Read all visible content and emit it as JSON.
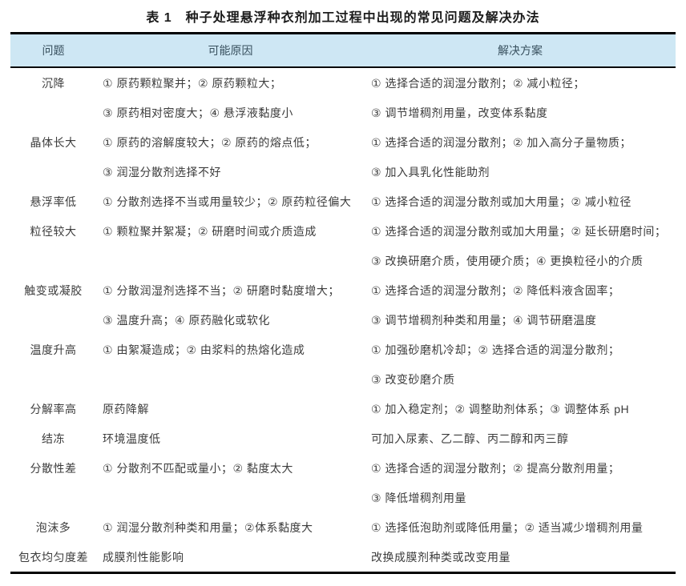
{
  "page": {
    "title": "表 1　种子处理悬浮种衣剂加工过程中出现的常见问题及解决办法"
  },
  "colors": {
    "header_bg": "#cee7f4",
    "rule": "#000000",
    "body_text": "#3c3c3c"
  },
  "table": {
    "header": {
      "problem": "问题",
      "cause": "可能原因",
      "solution": "解决方案"
    },
    "rows": [
      {
        "problem": "沉降",
        "causes": [
          "① 原药颗粒聚并；② 原药颗粒大；",
          "③ 原药相对密度大；④ 悬浮液黏度小"
        ],
        "solutions": [
          "① 选择合适的润湿分散剂；② 减小粒径；",
          "③ 调节增稠剂用量，改变体系黏度"
        ]
      },
      {
        "problem": "晶体长大",
        "causes": [
          "① 原药的溶解度较大；② 原药的熔点低；",
          "③ 润湿分散剂选择不好"
        ],
        "solutions": [
          "① 选择合适的润湿分散剂；② 加入高分子量物质；",
          "③ 加入具乳化性能助剂"
        ]
      },
      {
        "problem": "悬浮率低",
        "causes": [
          "① 分散剂选择不当或用量较少；② 原药粒径偏大"
        ],
        "solutions": [
          "① 选择合适的润湿分散剂或加大用量；② 减小粒径"
        ]
      },
      {
        "problem": "粒径较大",
        "causes": [
          "① 颗粒聚并絮凝；② 研磨时间或介质造成"
        ],
        "solutions": [
          "① 选择合适的润湿分散剂或加大用量；② 延长研磨时间；",
          "③ 改换研磨介质，使用硬介质；④ 更换粒径小的介质"
        ]
      },
      {
        "problem": "触变或凝胶",
        "causes": [
          "① 分散润湿剂选择不当；② 研磨时黏度增大；",
          "③ 温度升高；④ 原药融化或软化"
        ],
        "solutions": [
          "① 选择合适的润湿分散剂；② 降低料液含固率；",
          "③ 调节增稠剂种类和用量；④ 调节研磨温度"
        ]
      },
      {
        "problem": "温度升高",
        "causes": [
          "① 由絮凝造成；② 由浆料的热熔化造成"
        ],
        "solutions": [
          "① 加强砂磨机冷却；② 选择合适的润湿分散剂；",
          "③ 改变砂磨介质"
        ]
      },
      {
        "problem": "分解率高",
        "causes": [
          "原药降解"
        ],
        "solutions": [
          "① 加入稳定剂；② 调整助剂体系；③ 调整体系 pH"
        ]
      },
      {
        "problem": "结冻",
        "causes": [
          "环境温度低"
        ],
        "solutions": [
          "可加入尿素、乙二醇、丙二醇和丙三醇"
        ]
      },
      {
        "problem": "分散性差",
        "causes": [
          "① 分散剂不匹配或量小；② 黏度太大"
        ],
        "solutions": [
          "① 选择合适的润湿分散剂；② 提高分散剂用量；",
          "③ 降低增稠剂用量"
        ]
      },
      {
        "problem": "泡沫多",
        "causes": [
          "① 润湿分散剂种类和用量；②体系黏度大"
        ],
        "solutions": [
          "① 选择低泡助剂或降低用量；② 适当减少增稠剂用量"
        ]
      },
      {
        "problem": "包衣均匀度差",
        "causes": [
          "成膜剂性能影响"
        ],
        "solutions": [
          "改换成膜剂种类或改变用量"
        ]
      }
    ]
  }
}
